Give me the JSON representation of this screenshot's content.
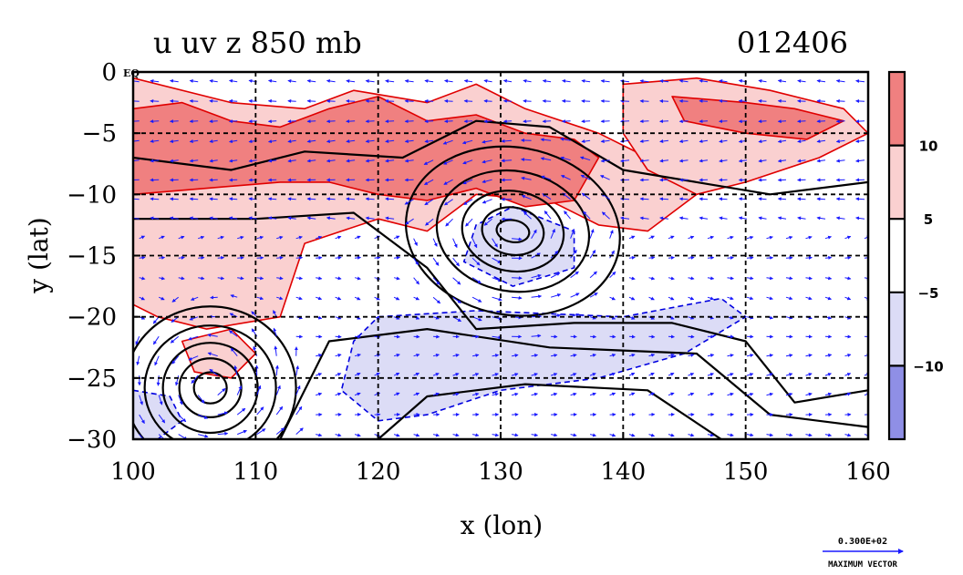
{
  "chart_data": {
    "type": "heatmap",
    "title_left": "u uv z 850 mb",
    "title_right": "012406",
    "xlabel": "x (lon)",
    "ylabel": "y (lat)",
    "xlim": [
      100,
      160
    ],
    "ylim": [
      -30,
      0
    ],
    "x_ticks": [
      100,
      110,
      120,
      130,
      140,
      150,
      160
    ],
    "y_ticks": [
      0,
      -5,
      -10,
      -15,
      -20,
      -25,
      -30
    ],
    "y_tick_labels": [
      "0",
      "−5",
      "−10",
      "−15",
      "−20",
      "−25",
      "−30"
    ],
    "y_zero_suffix": "EQ",
    "x_grid_lines": [
      110,
      120,
      130,
      140,
      150
    ],
    "y_grid_lines": [
      -5,
      -10,
      -15,
      -20,
      -25
    ],
    "grid": true,
    "colorbar": {
      "levels": [
        -15,
        -10,
        -5,
        5,
        10,
        15
      ],
      "labels": [
        "10",
        "5",
        "−5",
        "−10"
      ],
      "label_values": [
        10,
        5,
        -5,
        -10
      ],
      "colors": [
        "#f08080",
        "#fad0d0",
        "#ffffff",
        "#dcdcf6",
        "#8f8fe6"
      ]
    },
    "shaded_regions": [
      {
        "level": 5,
        "lon": [
          100,
          160
        ],
        "lat_band": "north",
        "note_centers": [
          [
            108,
            -5
          ],
          [
            125,
            -7
          ],
          [
            140,
            -8
          ],
          [
            150,
            -3
          ]
        ]
      },
      {
        "level": 10,
        "centers": [
          [
            105,
            -7
          ],
          [
            118,
            -7
          ],
          [
            132,
            -9
          ],
          [
            155,
            -4
          ]
        ]
      },
      {
        "level": -5,
        "centers": [
          [
            133,
            -14
          ],
          [
            130,
            -24
          ],
          [
            103,
            -27
          ]
        ]
      }
    ],
    "vector_legend": {
      "value_label": "0.300E+02",
      "caption": "MAXIMUM VECTOR"
    },
    "colors": {
      "positive_contour": "#e00000",
      "negative_contour": "#0000e0",
      "z_contour": "#000000",
      "vectors": "#1a1aff",
      "strong_pos": "#f08080",
      "weak_pos": "#fad0d0",
      "weak_neg": "#dcdcf6",
      "strong_neg": "#8f8fe6"
    }
  }
}
